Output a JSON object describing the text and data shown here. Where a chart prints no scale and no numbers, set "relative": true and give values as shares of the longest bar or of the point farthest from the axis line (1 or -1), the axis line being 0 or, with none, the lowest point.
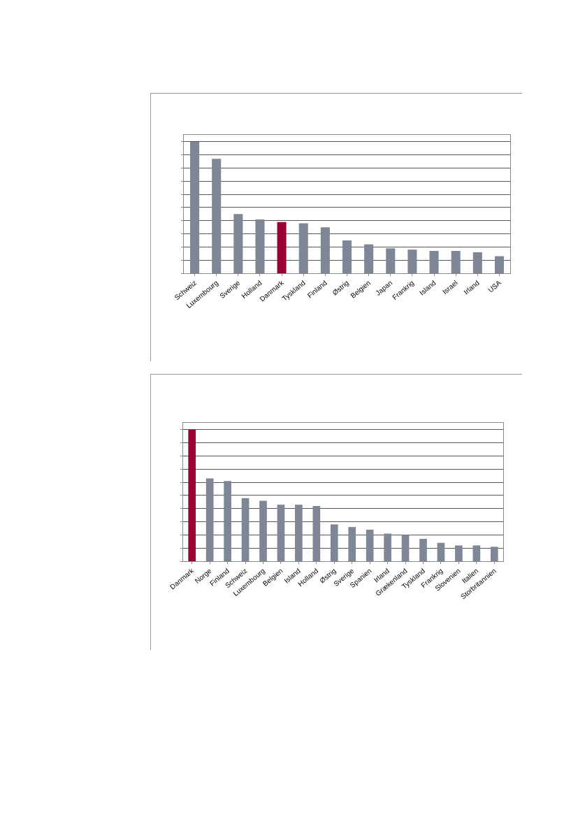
{
  "chart_data": [
    {
      "type": "bar",
      "relative": true,
      "grid": true,
      "categories": [
        "Schweiz",
        "Luxembourg",
        "Sverige",
        "Holland",
        "Danmark",
        "Tyskland",
        "Finland",
        "Østrig",
        "Belgien",
        "Japan",
        "Frankrig",
        "Island",
        "Israel",
        "Irland",
        "USA"
      ],
      "values": [
        1,
        0.87,
        0.45,
        0.41,
        0.39,
        0.38,
        0.35,
        0.25,
        0.22,
        0.19,
        0.18,
        0.17,
        0.17,
        0.16,
        0.13
      ],
      "colors": [
        "#7f8796",
        "#7f8796",
        "#7f8796",
        "#7f8796",
        "#9b0033",
        "#7f8796",
        "#7f8796",
        "#7f8796",
        "#7f8796",
        "#7f8796",
        "#7f8796",
        "#7f8796",
        "#7f8796",
        "#7f8796",
        "#7f8796"
      ]
    },
    {
      "type": "bar",
      "relative": true,
      "grid": true,
      "categories": [
        "Danmark",
        "Norge",
        "Finland",
        "Schweiz",
        "Luxembourg",
        "Belgien",
        "Island",
        "Holland",
        "Østrig",
        "Sverige",
        "Spanien",
        "Irland",
        "Grækenland",
        "Tyskland",
        "Frankrig",
        "Slovenien",
        "Italien",
        "Storbritannien"
      ],
      "values": [
        1,
        0.63,
        0.61,
        0.48,
        0.46,
        0.43,
        0.43,
        0.42,
        0.28,
        0.26,
        0.24,
        0.21,
        0.2,
        0.17,
        0.14,
        0.12,
        0.12,
        0.11
      ],
      "colors": [
        "#9b0033",
        "#7f8796",
        "#7f8796",
        "#7f8796",
        "#7f8796",
        "#7f8796",
        "#7f8796",
        "#7f8796",
        "#7f8796",
        "#7f8796",
        "#7f8796",
        "#7f8796",
        "#7f8796",
        "#7f8796",
        "#7f8796",
        "#7f8796",
        "#7f8796",
        "#7f8796"
      ]
    }
  ]
}
